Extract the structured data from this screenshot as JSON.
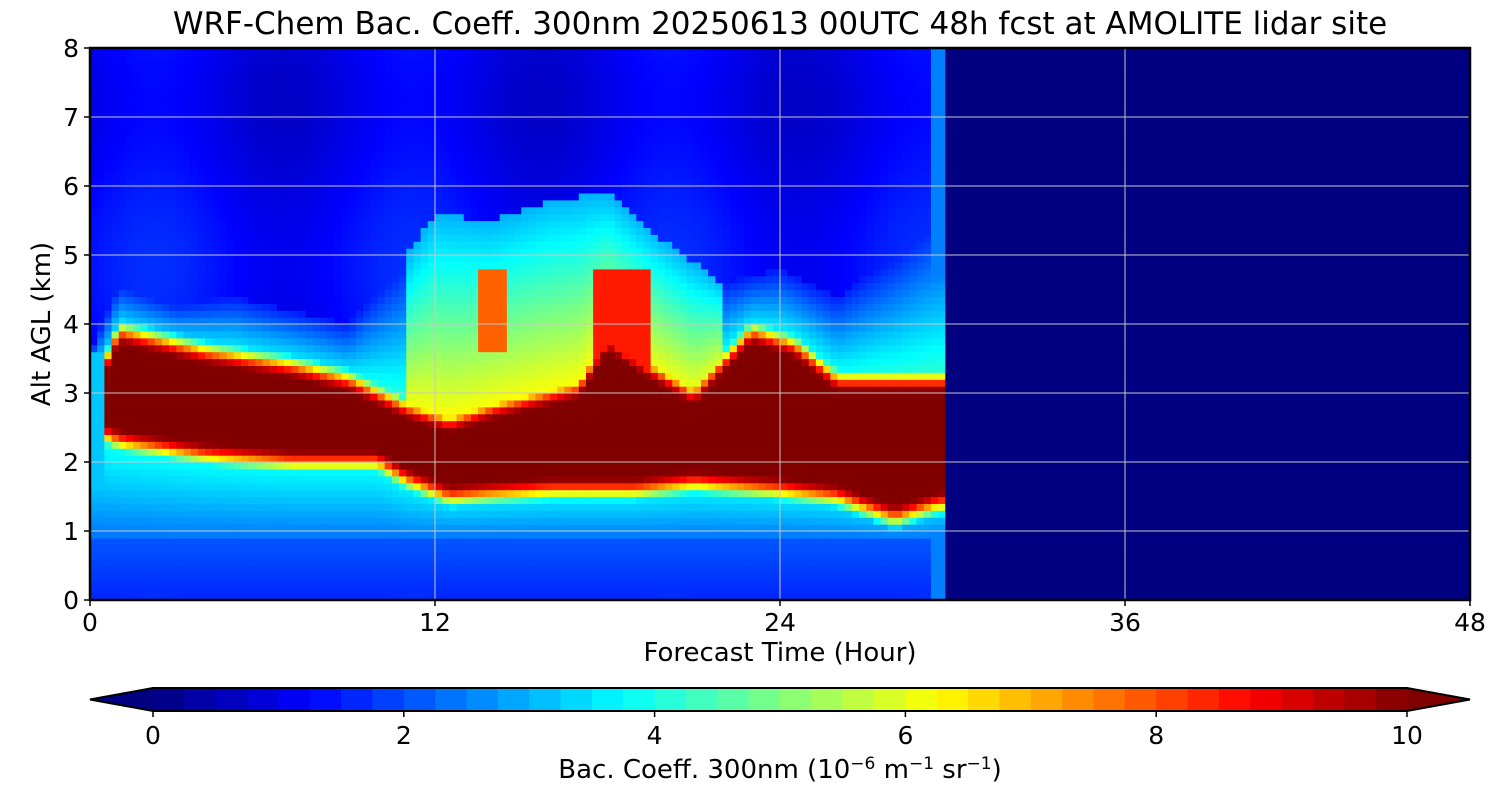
{
  "chart_data": {
    "type": "heatmap",
    "title": "WRF-Chem Bac. Coeff. 300nm  20250613 00UTC 48h fcst at AMOLITE lidar site",
    "xlabel": "Forecast Time (Hour)",
    "ylabel": "Alt AGL (km)",
    "xlim": [
      0,
      48
    ],
    "ylim": [
      0,
      8
    ],
    "xticks": [
      "0",
      "12",
      "24",
      "36",
      "48"
    ],
    "yticks": [
      "0",
      "1",
      "2",
      "3",
      "4",
      "5",
      "6",
      "7",
      "8"
    ],
    "grid": true,
    "colormap": "jet",
    "colorbar": {
      "orientation": "horizontal",
      "position": "bottom",
      "range": [
        0,
        10
      ],
      "ticks": [
        "0",
        "2",
        "4",
        "6",
        "8",
        "10"
      ],
      "extend": "both",
      "label": {
        "base": "Bac. Coeff. 300nm  (10",
        "exp1": "−6",
        "unit1": " m",
        "exp2": "−1",
        "unit2": " sr",
        "exp3": "−1",
        "close": ")"
      }
    },
    "field_note": "approximate digitized values: forecast data present from 0 to ~30 h; beyond ~30 h the field is 0",
    "features": [
      {
        "name": "main aerosol layer",
        "x_range": [
          0.5,
          29.5
        ],
        "alt_km": [
          1.4,
          3.8
        ],
        "value": 10
      },
      {
        "name": "moderate layer above",
        "x_range": [
          11,
          22
        ],
        "alt_km": [
          3.0,
          5.8
        ],
        "value": 6.5
      },
      {
        "name": "lower band",
        "x_range": [
          0.5,
          29
        ],
        "alt_km": [
          1.0,
          1.9
        ],
        "value": 3.5
      },
      {
        "name": "background",
        "x_range": [
          0,
          29.5
        ],
        "alt_km": [
          0,
          8
        ],
        "value": 1.5
      },
      {
        "name": "no data",
        "x_range": [
          29.8,
          48
        ],
        "alt_km": [
          0,
          8
        ],
        "value": 0
      }
    ]
  }
}
